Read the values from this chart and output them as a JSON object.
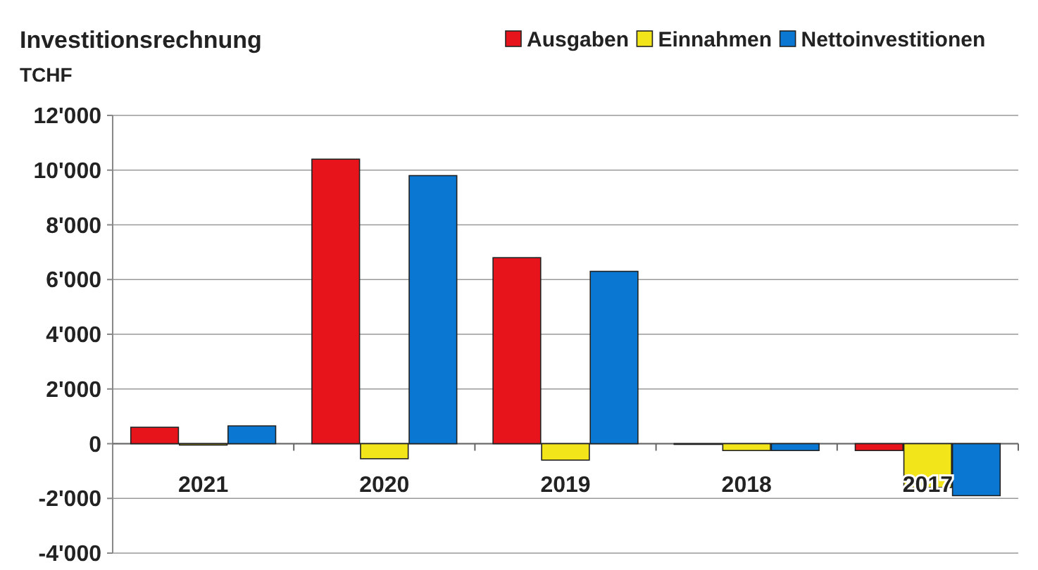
{
  "chart_data": {
    "type": "bar",
    "title": "Investitionsrechnung",
    "ylabel": "TCHF",
    "categories": [
      "2021",
      "2020",
      "2019",
      "2018",
      "2017"
    ],
    "series": [
      {
        "name": "Ausgaben",
        "color": "#e8141c",
        "values": [
          600,
          10400,
          6800,
          0,
          -250
        ]
      },
      {
        "name": "Einnahmen",
        "color": "#f2e61a",
        "values": [
          -50,
          -550,
          -600,
          -250,
          -1600
        ]
      },
      {
        "name": "Nettoinvestitionen",
        "color": "#0a78d2",
        "values": [
          650,
          9800,
          6300,
          -250,
          -1900
        ]
      }
    ],
    "ylim": [
      -4000,
      12000
    ],
    "yticks": [
      {
        "value": -4000,
        "label": "-4'000"
      },
      {
        "value": -2000,
        "label": "-2'000"
      },
      {
        "value": 0,
        "label": "0"
      },
      {
        "value": 2000,
        "label": "2'000"
      },
      {
        "value": 4000,
        "label": "4'000"
      },
      {
        "value": 6000,
        "label": "6'000"
      },
      {
        "value": 8000,
        "label": "8'000"
      },
      {
        "value": 10000,
        "label": "10'000"
      },
      {
        "value": 12000,
        "label": "12'000"
      }
    ],
    "grid": "y",
    "legend": "top right"
  }
}
